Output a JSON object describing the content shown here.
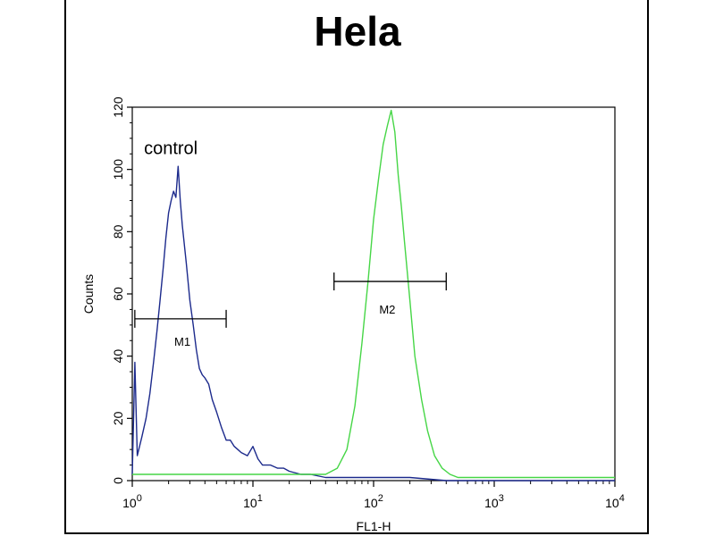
{
  "chart_data": {
    "type": "line",
    "title": "Hela",
    "xlabel": "FL1-H",
    "ylabel": "Counts",
    "x_scale": "log",
    "xlim": [
      1,
      10000
    ],
    "ylim": [
      0,
      120
    ],
    "x_ticks": [
      {
        "value": 1,
        "base": "10",
        "exp": "0"
      },
      {
        "value": 10,
        "base": "10",
        "exp": "1"
      },
      {
        "value": 100,
        "base": "10",
        "exp": "2"
      },
      {
        "value": 1000,
        "base": "10",
        "exp": "3"
      },
      {
        "value": 10000,
        "base": "10",
        "exp": "4"
      }
    ],
    "y_ticks": [
      "0",
      "20",
      "40",
      "60",
      "80",
      "100",
      "120"
    ],
    "annotations": {
      "control": "control",
      "m1": "M1",
      "m2": "M2"
    },
    "markers": [
      {
        "label": "M1",
        "x_start": 1.05,
        "x_end": 6.0,
        "y": 52
      },
      {
        "label": "M2",
        "x_start": 47,
        "x_end": 400,
        "y": 64
      }
    ],
    "series": [
      {
        "color": "#1c2a8c",
        "x": [
          1.0,
          1.05,
          1.1,
          1.2,
          1.3,
          1.4,
          1.5,
          1.6,
          1.7,
          1.8,
          1.9,
          2.0,
          2.1,
          2.2,
          2.3,
          2.4,
          2.5,
          2.6,
          2.7,
          2.8,
          2.9,
          3.0,
          3.2,
          3.4,
          3.6,
          3.8,
          4.0,
          4.3,
          4.6,
          5.0,
          5.5,
          6.0,
          6.5,
          7.0,
          7.5,
          8.0,
          9.0,
          10,
          11,
          12,
          14,
          16,
          18,
          20,
          25,
          30,
          40,
          50,
          70,
          100,
          200,
          400,
          1000,
          3000,
          10000
        ],
        "y": [
          2,
          38,
          8,
          14,
          20,
          28,
          38,
          48,
          58,
          68,
          78,
          86,
          90,
          93,
          91,
          101,
          90,
          82,
          76,
          70,
          64,
          58,
          50,
          42,
          36,
          34,
          33,
          31,
          26,
          22,
          17,
          13,
          13,
          11,
          10,
          9,
          8,
          11,
          7,
          5,
          5,
          4,
          4,
          3,
          2,
          2,
          1,
          1,
          1,
          1,
          1,
          0,
          0,
          0,
          0
        ]
      },
      {
        "color": "#46d646",
        "x": [
          1,
          3,
          10,
          20,
          30,
          40,
          50,
          60,
          70,
          80,
          90,
          100,
          110,
          120,
          130,
          140,
          150,
          160,
          170,
          180,
          200,
          220,
          250,
          280,
          320,
          370,
          430,
          500,
          700,
          1000,
          3000,
          10000
        ],
        "y": [
          2,
          2,
          2,
          2,
          2,
          2,
          4,
          10,
          24,
          44,
          64,
          84,
          97,
          108,
          114,
          119,
          112,
          98,
          88,
          77,
          58,
          40,
          26,
          16,
          8,
          4,
          2,
          1,
          1,
          1,
          1,
          1
        ]
      }
    ]
  }
}
